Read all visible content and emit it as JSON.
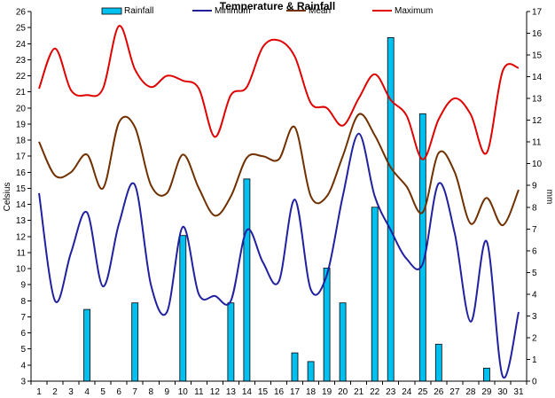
{
  "chart_data": {
    "type": "bar",
    "title": "Temperature & Rainfall",
    "ylabel": "Celsius",
    "y2label": "mm",
    "xlabel": "",
    "x": [
      1,
      2,
      3,
      4,
      5,
      6,
      7,
      8,
      9,
      10,
      11,
      12,
      13,
      14,
      15,
      16,
      17,
      18,
      19,
      20,
      21,
      22,
      23,
      24,
      25,
      26,
      27,
      28,
      29,
      30,
      31
    ],
    "ylim": [
      3,
      26
    ],
    "y2lim": [
      0,
      17
    ],
    "grid": false,
    "legend_position": "top",
    "series": [
      {
        "name": "Rainfall",
        "type": "bar",
        "axis": "right",
        "color": "#00C0F0",
        "values": [
          0,
          0,
          0,
          3.3,
          0,
          0,
          3.6,
          0,
          0,
          6.7,
          0,
          0,
          3.6,
          9.3,
          0,
          0,
          1.3,
          0.9,
          5.2,
          3.6,
          0,
          8,
          15.8,
          0,
          12.3,
          1.7,
          0,
          0,
          0.6,
          0,
          0
        ]
      },
      {
        "name": "Minimum",
        "type": "line",
        "axis": "left",
        "color": "#2020A0",
        "values": [
          14.7,
          8,
          11,
          13.5,
          8.9,
          12.8,
          15.2,
          9,
          7.3,
          12.6,
          8.4,
          8.3,
          8,
          12.4,
          10.4,
          9.2,
          14.3,
          8.7,
          9.6,
          14.5,
          18.4,
          14.5,
          12.4,
          10.6,
          10.3,
          15.3,
          12.2,
          6.7,
          11.7,
          3.3,
          7.3
        ]
      },
      {
        "name": "Mean",
        "type": "line",
        "axis": "left",
        "color": "#703000",
        "values": [
          17.9,
          15.8,
          16,
          17.1,
          15,
          19.1,
          18.8,
          15.2,
          14.7,
          17.1,
          15,
          13.3,
          14.5,
          16.9,
          17,
          16.8,
          18.8,
          14.5,
          14.5,
          17,
          19.6,
          18.3,
          16.3,
          15.1,
          13.5,
          17.2,
          16,
          12.8,
          14.4,
          12.7,
          14.9
        ]
      },
      {
        "name": "Maximum",
        "type": "line",
        "axis": "left",
        "color": "#E00000",
        "values": [
          21.2,
          23.7,
          21.1,
          20.8,
          21.2,
          25.1,
          22.4,
          21.3,
          22,
          21.7,
          21.2,
          18.2,
          20.8,
          21.3,
          23.8,
          24.2,
          23.2,
          20.3,
          20,
          18.9,
          20.6,
          22.1,
          20.5,
          19.5,
          16.8,
          19.3,
          20.6,
          19.6,
          17.2,
          22.3,
          22.5
        ]
      }
    ]
  }
}
